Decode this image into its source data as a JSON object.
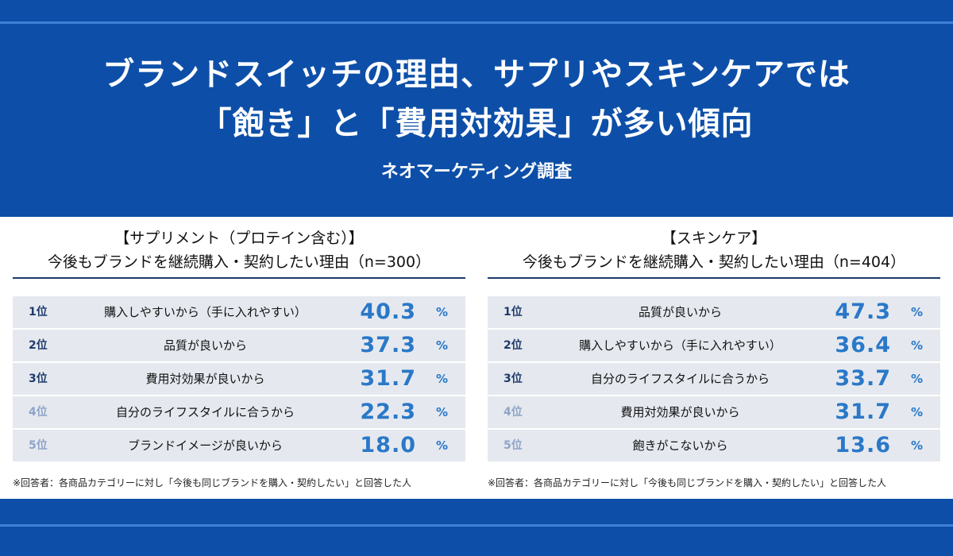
{
  "header": {
    "title_line1": "ブランドスイッチの理由、サプリやスキンケアでは",
    "title_line2": "「飽き」と「費用対効果」が多い傾向",
    "subtitle": "ネオマーケティング調査"
  },
  "panels": [
    {
      "heading_line1": "【サプリメント（プロテイン含む）】",
      "heading_line2": "今後もブランドを継続購入・契約したい理由（n=300）",
      "unit": "%",
      "rows": [
        {
          "rank": "1位",
          "reason": "購入しやすいから（手に入れやすい）",
          "value": "40.3"
        },
        {
          "rank": "2位",
          "reason": "品質が良いから",
          "value": "37.3"
        },
        {
          "rank": "3位",
          "reason": "費用対効果が良いから",
          "value": "31.7"
        },
        {
          "rank": "4位",
          "reason": "自分のライフスタイルに合うから",
          "value": "22.3"
        },
        {
          "rank": "5位",
          "reason": "ブランドイメージが良いから",
          "value": "18.0"
        }
      ],
      "note": "※回答者：各商品カテゴリーに対し「今後も同じブランドを購入・契約したい」と回答した人"
    },
    {
      "heading_line1": "【スキンケア】",
      "heading_line2": "今後もブランドを継続購入・契約したい理由（n=404）",
      "unit": "%",
      "rows": [
        {
          "rank": "1位",
          "reason": "品質が良いから",
          "value": "47.3"
        },
        {
          "rank": "2位",
          "reason": "購入しやすいから（手に入れやすい）",
          "value": "36.4"
        },
        {
          "rank": "3位",
          "reason": "自分のライフスタイルに合うから",
          "value": "33.7"
        },
        {
          "rank": "4位",
          "reason": "費用対効果が良いから",
          "value": "31.7"
        },
        {
          "rank": "5位",
          "reason": "飽きがこないから",
          "value": "13.6"
        }
      ],
      "note": "※回答者：各商品カテゴリーに対し「今後も同じブランドを購入・契約したい」と回答した人"
    }
  ],
  "colors": {
    "header_bg": "#0d4fa8",
    "accent_rule": "#3f7fd6",
    "value_blue": "#2a78c8",
    "rank_dark": "#1f3a6b",
    "rank_light": "#8ea3c7",
    "row_bg": "#e5e9ef"
  }
}
